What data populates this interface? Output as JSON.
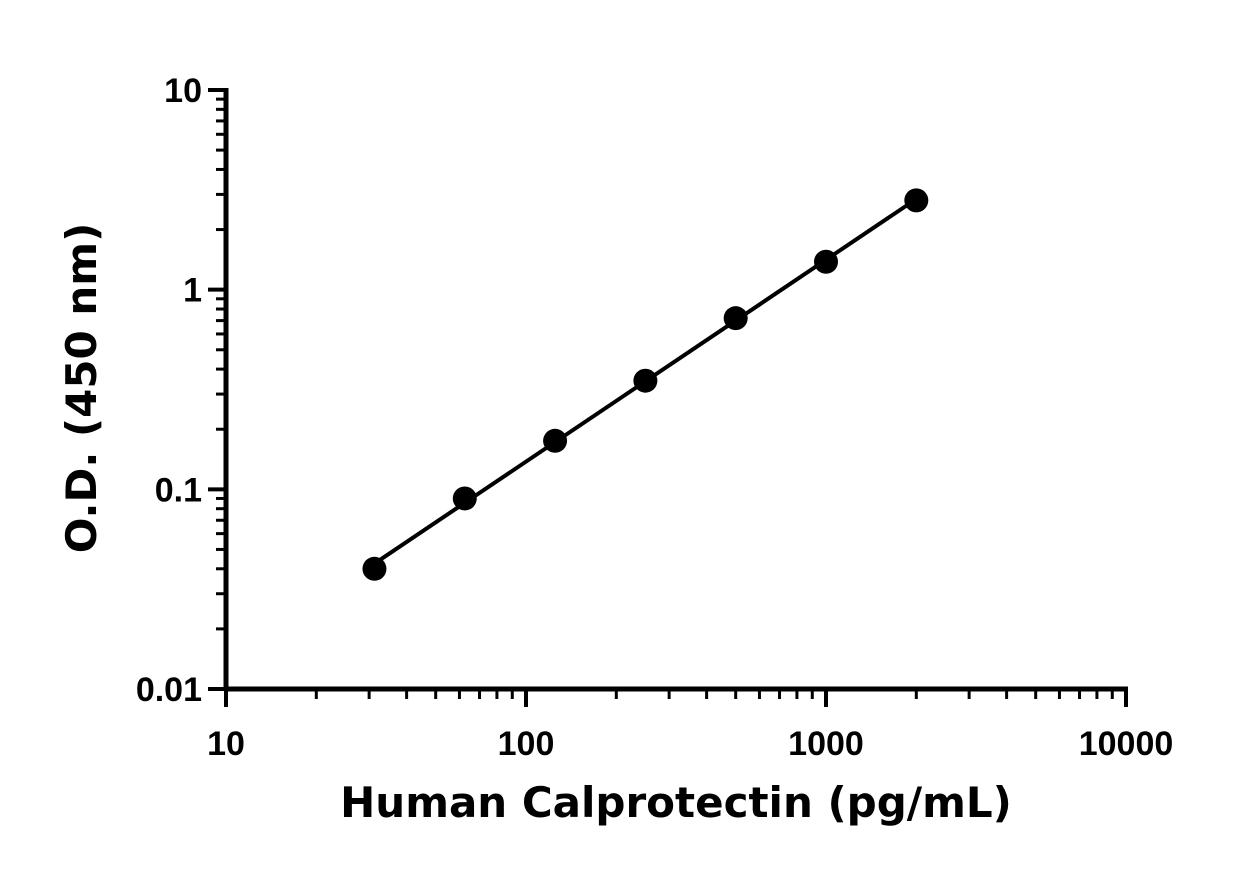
{
  "chart_data": {
    "type": "scatter",
    "title": "",
    "xlabel": "Human Calprotectin (pg/mL)",
    "ylabel": "O.D. (450 nm)",
    "x_scale": "log",
    "y_scale": "log",
    "xlim": [
      10,
      10000
    ],
    "ylim": [
      0.01,
      10
    ],
    "x_ticks": [
      "10",
      "100",
      "1000",
      "10000"
    ],
    "y_ticks": [
      "0.01",
      "0.1",
      "1",
      "10"
    ],
    "grid": false,
    "legend": "none",
    "series": [
      {
        "x": [
          31.25,
          62.5,
          125,
          250,
          500,
          1000,
          2000
        ],
        "y": [
          0.04,
          0.09,
          0.175,
          0.35,
          0.72,
          1.38,
          2.8
        ],
        "fit_line": true,
        "color": "#000000"
      }
    ]
  }
}
